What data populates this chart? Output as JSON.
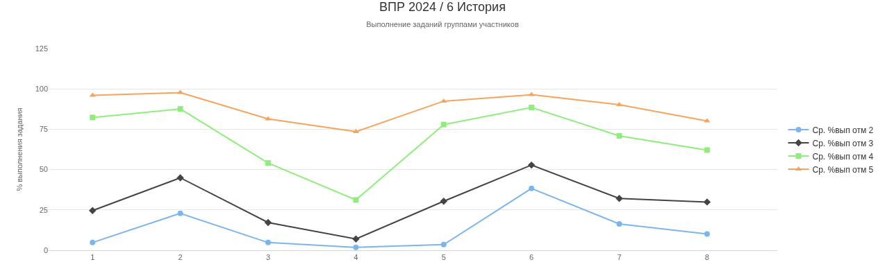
{
  "chart_data": {
    "type": "line",
    "title": "ВПР 2024 / 6 История",
    "subtitle": "Выполнение заданий группами участников",
    "ylabel": "% выполнения задания",
    "categories": [
      "1",
      "2",
      "3",
      "4",
      "5",
      "6",
      "7",
      "8"
    ],
    "series": [
      {
        "name": "Ср. %вып отм 2",
        "color": "#7cb5ec",
        "marker": "circle",
        "values": [
          4.8,
          22.9,
          4.8,
          1.8,
          3.5,
          38.3,
          16.3,
          10.1
        ]
      },
      {
        "name": "Ср. %вып отм 3",
        "color": "#434348",
        "marker": "diamond",
        "values": [
          24.6,
          44.9,
          17.2,
          7.0,
          30.4,
          52.8,
          32.1,
          29.9
        ]
      },
      {
        "name": "Ср. %вып отм 4",
        "color": "#90ed7d",
        "marker": "square",
        "values": [
          82.3,
          87.6,
          54.1,
          31.2,
          77.9,
          88.5,
          70.9,
          62.1
        ]
      },
      {
        "name": "Ср. %вып отм 5",
        "color": "#f7a35c",
        "marker": "triangle",
        "values": [
          96.0,
          97.7,
          81.4,
          73.5,
          92.4,
          96.4,
          90.2,
          80.1
        ]
      }
    ],
    "ylim": [
      0,
      125
    ],
    "yticks": [
      0,
      25,
      50,
      75,
      100,
      125
    ],
    "grid": "y",
    "legend": "right",
    "line_style": "solid"
  }
}
